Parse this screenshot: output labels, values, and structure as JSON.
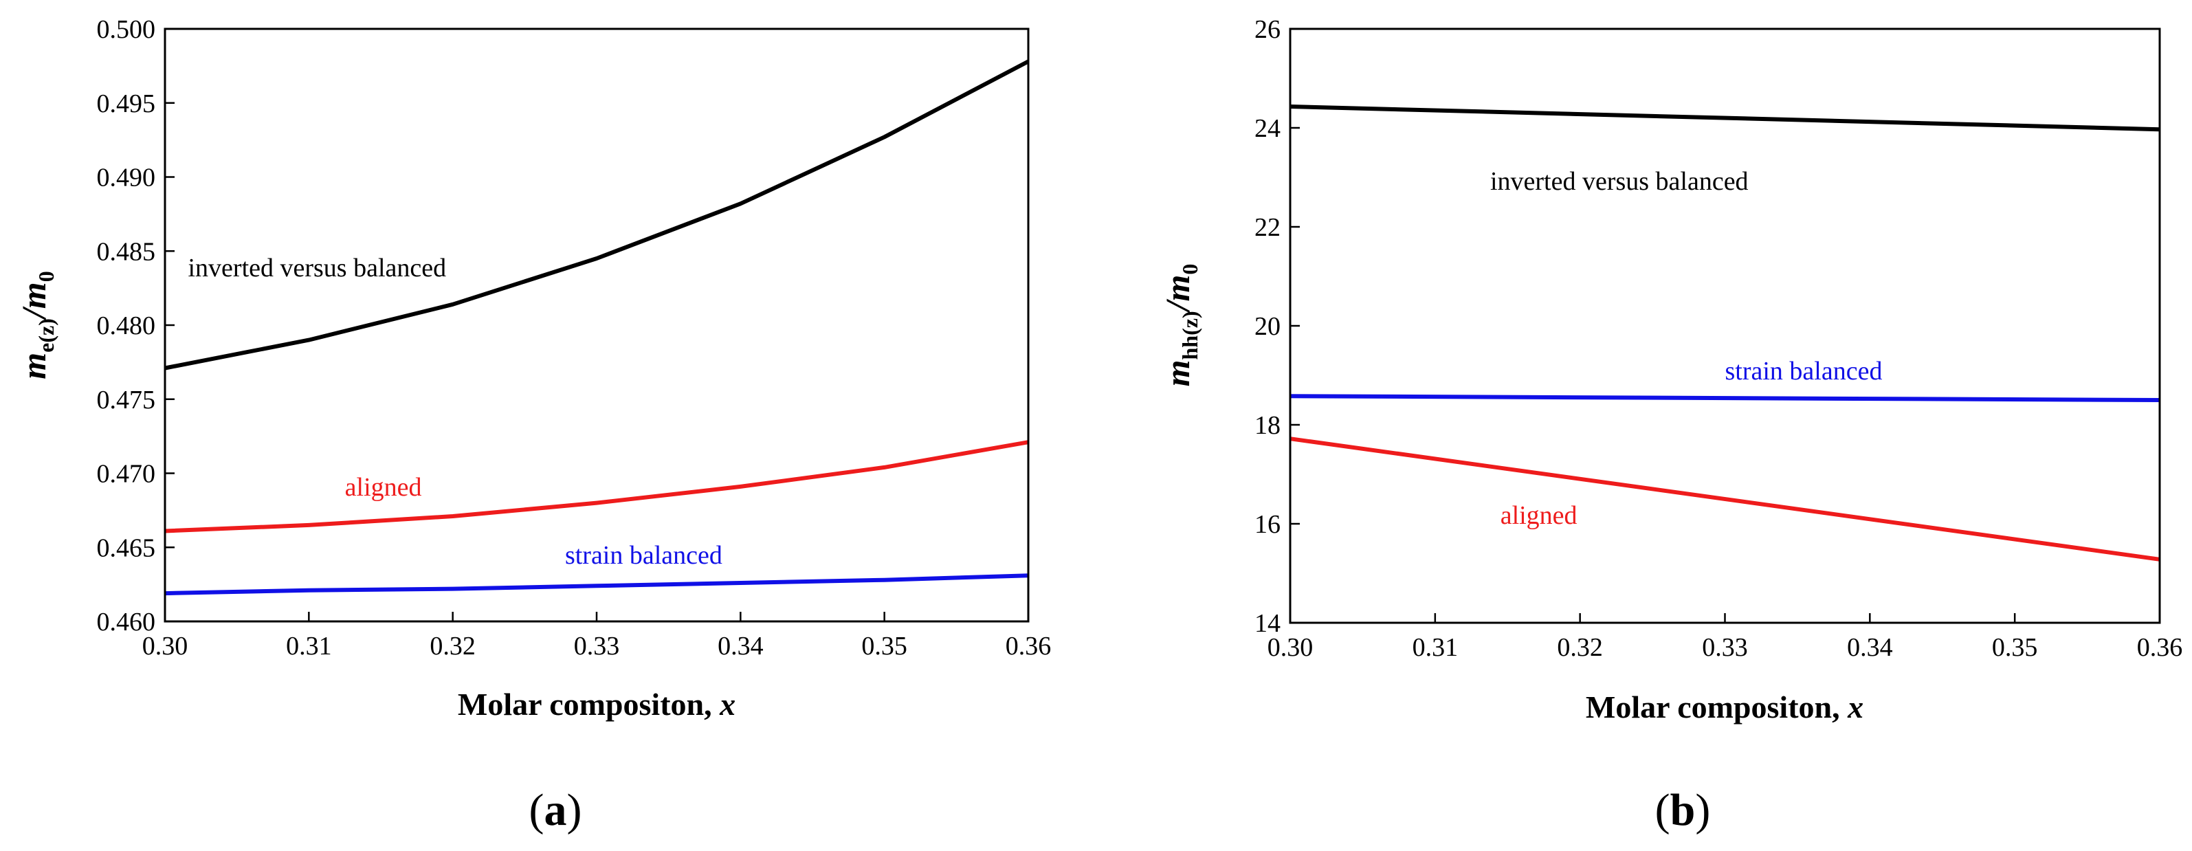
{
  "colors": {
    "black": "#000000",
    "red": "#ee1c1c",
    "blue": "#1010e6"
  },
  "chart_data": [
    {
      "type": "line",
      "panel_label": "(a)",
      "panel_letter": "a",
      "xlabel": "Molar compositon, ",
      "xlabel_var": "x",
      "ylabel_parts": {
        "m1": "m",
        "sub1": "e(z)",
        "slash": "/",
        "m2": "m",
        "sub2": "0"
      },
      "xlim": [
        0.3,
        0.36
      ],
      "ylim": [
        0.46,
        0.5
      ],
      "xticks": [
        0.3,
        0.31,
        0.32,
        0.33,
        0.34,
        0.35,
        0.36
      ],
      "xtick_labels": [
        "0.30",
        "0.31",
        "0.32",
        "0.33",
        "0.34",
        "0.35",
        "0.36"
      ],
      "yticks": [
        0.46,
        0.465,
        0.47,
        0.475,
        0.48,
        0.485,
        0.49,
        0.495,
        0.5
      ],
      "ytick_labels": [
        "0.460",
        "0.465",
        "0.470",
        "0.475",
        "0.480",
        "0.485",
        "0.490",
        "0.495",
        "0.500"
      ],
      "x": [
        0.3,
        0.31,
        0.32,
        0.33,
        0.34,
        0.35,
        0.36
      ],
      "series": [
        {
          "name": "inverted versus balanced",
          "color": "#000000",
          "values": [
            0.4771,
            0.479,
            0.4814,
            0.4845,
            0.4882,
            0.4927,
            0.4978
          ]
        },
        {
          "name": "aligned",
          "color": "#ee1c1c",
          "values": [
            0.4661,
            0.4665,
            0.4671,
            0.468,
            0.4691,
            0.4704,
            0.4721
          ]
        },
        {
          "name": "strain balanced",
          "color": "#1010e6",
          "values": [
            0.4619,
            0.4621,
            0.4622,
            0.4624,
            0.4626,
            0.4628,
            0.4631
          ]
        }
      ],
      "annotations": [
        {
          "text": "inverted versus balanced",
          "color": "#000000",
          "x": 0.3016,
          "y": 0.4833
        },
        {
          "text": "aligned",
          "color": "#ee1c1c",
          "x": 0.3125,
          "y": 0.4685
        },
        {
          "text": "strain balanced",
          "color": "#1010e6",
          "x": 0.3278,
          "y": 0.4639
        }
      ]
    },
    {
      "type": "line",
      "panel_label": "(b)",
      "panel_letter": "b",
      "xlabel": "Molar compositon, ",
      "xlabel_var": "x",
      "ylabel_parts": {
        "m1": "m",
        "sub1": "hh(z)",
        "slash": "/",
        "m2": "m",
        "sub2": "0"
      },
      "xlim": [
        0.3,
        0.36
      ],
      "ylim": [
        14,
        26
      ],
      "xticks": [
        0.3,
        0.31,
        0.32,
        0.33,
        0.34,
        0.35,
        0.36
      ],
      "xtick_labels": [
        "0.30",
        "0.31",
        "0.32",
        "0.33",
        "0.34",
        "0.35",
        "0.36"
      ],
      "yticks": [
        14,
        16,
        18,
        20,
        22,
        24,
        26
      ],
      "ytick_labels": [
        "14",
        "16",
        "18",
        "20",
        "22",
        "24",
        "26"
      ],
      "x": [
        0.3,
        0.36
      ],
      "series": [
        {
          "name": "inverted versus balanced",
          "color": "#000000",
          "values": [
            24.43,
            23.97
          ]
        },
        {
          "name": "strain balanced",
          "color": "#1010e6",
          "values": [
            18.58,
            18.5
          ]
        },
        {
          "name": "aligned",
          "color": "#ee1c1c",
          "values": [
            17.72,
            15.28
          ]
        }
      ],
      "annotations": [
        {
          "text": "inverted versus balanced",
          "color": "#000000",
          "x": 0.3138,
          "y": 22.75
        },
        {
          "text": "strain balanced",
          "color": "#1010e6",
          "x": 0.33,
          "y": 18.92
        },
        {
          "text": "aligned",
          "color": "#ee1c1c",
          "x": 0.3145,
          "y": 16.0
        }
      ]
    }
  ]
}
